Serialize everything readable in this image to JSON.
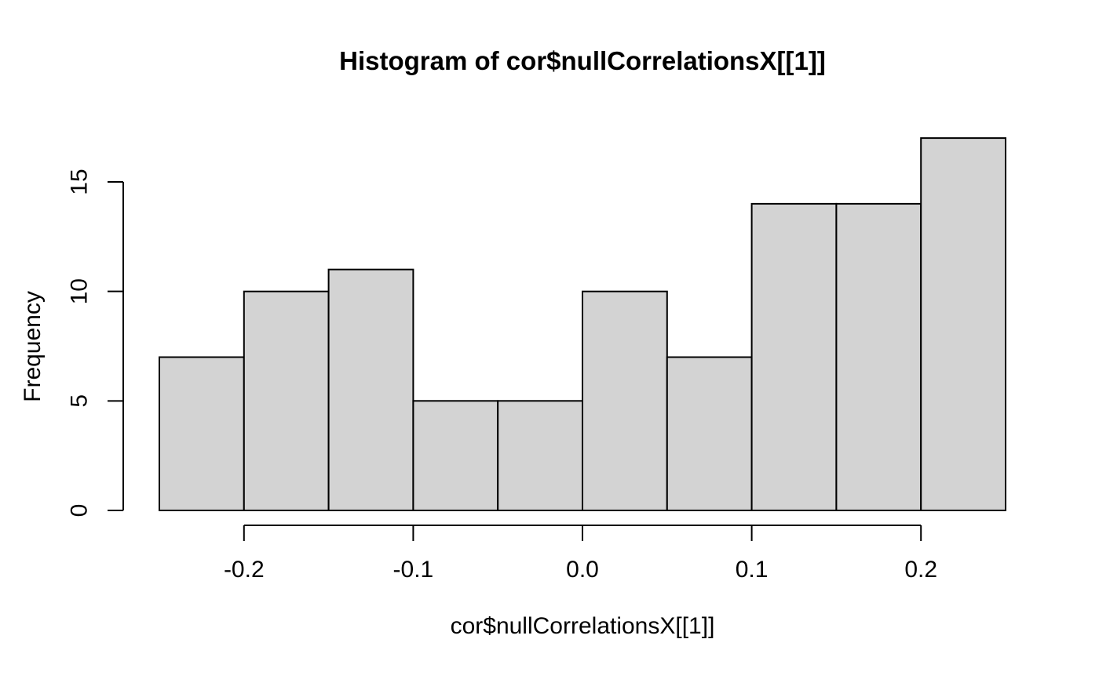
{
  "chart_data": {
    "type": "bar",
    "subtype": "histogram",
    "title": "Histogram of cor$nullCorrelationsX[[1]]",
    "xlabel": "cor$nullCorrelationsX[[1]]",
    "ylabel": "Frequency",
    "breaks": [
      -0.25,
      -0.2,
      -0.15,
      -0.1,
      -0.05,
      0.0,
      0.05,
      0.1,
      0.15,
      0.2,
      0.25
    ],
    "counts": [
      7,
      10,
      11,
      5,
      5,
      10,
      7,
      14,
      14,
      17
    ],
    "x_ticks": [
      -0.2,
      -0.1,
      0.0,
      0.1,
      0.2
    ],
    "x_tick_labels": [
      "-0.2",
      "-0.1",
      "0.0",
      "0.1",
      "0.2"
    ],
    "y_ticks": [
      0,
      5,
      10,
      15
    ],
    "y_tick_labels": [
      "0",
      "5",
      "10",
      "15"
    ],
    "xlim": [
      -0.25,
      0.25
    ],
    "ylim": [
      0,
      17
    ],
    "grid": false,
    "legend": null,
    "colors": {
      "bar_fill": "#D3D3D3",
      "bar_stroke": "#000000",
      "axis": "#000000",
      "text": "#000000",
      "background": "#FFFFFF"
    }
  }
}
